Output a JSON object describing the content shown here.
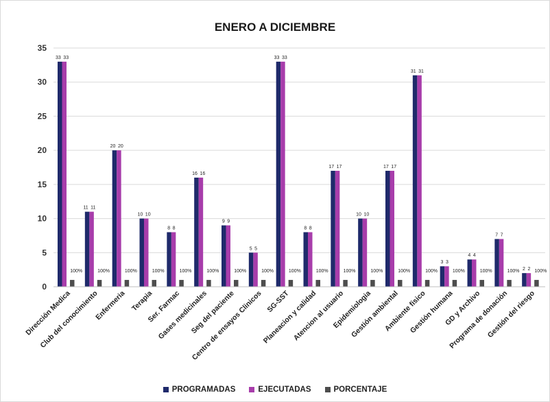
{
  "colors": {
    "programadas": "#1f2a6b",
    "ejecutadas": "#a83dab",
    "porcentaje": "#4d4d4d",
    "grid": "#d9d9d9"
  },
  "chart_data": {
    "type": "bar",
    "title": "ENERO A DICIEMBRE",
    "ylim": [
      0,
      35
    ],
    "yticks": [
      "0",
      "5",
      "10",
      "15",
      "20",
      "25",
      "30",
      "35"
    ],
    "grid": true,
    "legend_position": "bottom",
    "categories": [
      "Dirección Medica",
      "Club del conocimiento",
      "Enfermeria",
      "Terapia",
      "Ser. Farmac",
      "Gases medicinales",
      "Seg del paciente",
      "Centro de ensayos Clinicos",
      "SG-SST",
      "Planeacion y calidad",
      "Atencion al usuario",
      "Epidemiologia",
      "Gestión ambiental",
      "Ambiente fisico",
      "Gestión humana",
      "GD y Archivo",
      "Programa de donación",
      "Gestión del riesgo"
    ],
    "series": [
      {
        "name": "PROGRAMADAS",
        "values": [
          33,
          11,
          20,
          10,
          8,
          16,
          9,
          5,
          33,
          8,
          17,
          10,
          17,
          31,
          3,
          4,
          7,
          2
        ],
        "labels": [
          "33",
          "11",
          "20",
          "10",
          "8",
          "16",
          "9",
          "5",
          "33",
          "8",
          "17",
          "10",
          "17",
          "31",
          "3",
          "4",
          "7",
          "2"
        ]
      },
      {
        "name": "EJECUTADAS",
        "values": [
          33,
          11,
          20,
          10,
          8,
          16,
          9,
          5,
          33,
          8,
          17,
          10,
          17,
          31,
          3,
          4,
          7,
          2
        ],
        "labels": [
          "33",
          "11",
          "20",
          "10",
          "8",
          "16",
          "9",
          "5",
          "33",
          "8",
          "17",
          "10",
          "17",
          "31",
          "3",
          "4",
          "7",
          "2"
        ]
      },
      {
        "name": "PORCENTAJE",
        "values": [
          1,
          1,
          1,
          1,
          1,
          1,
          1,
          1,
          1,
          1,
          1,
          1,
          1,
          1,
          1,
          1,
          1,
          1
        ],
        "labels": [
          "100%",
          "100%",
          "100%",
          "100%",
          "100%",
          "100%",
          "100%",
          "100%",
          "100%",
          "100%",
          "100%",
          "100%",
          "100%",
          "100%",
          "100%",
          "100%",
          "100%",
          "100%"
        ]
      }
    ]
  }
}
